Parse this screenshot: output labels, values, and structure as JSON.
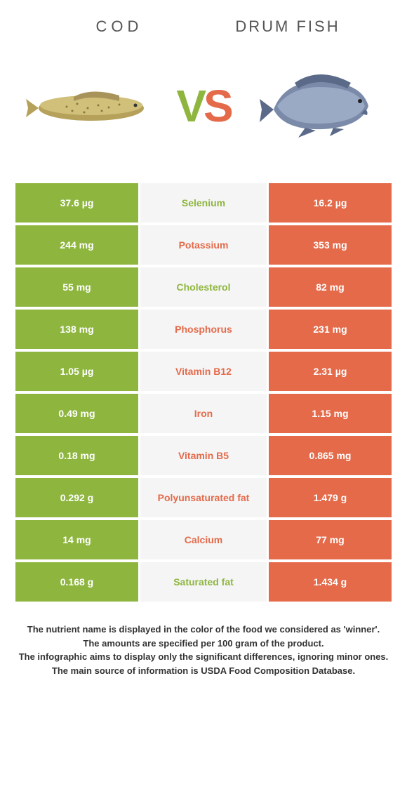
{
  "colors": {
    "left": "#8eb63f",
    "right": "#e46a4a",
    "mid_bg": "#f5f5f5",
    "text": "#333333"
  },
  "header": {
    "left_title": "COD",
    "right_title": "DRUM FISH"
  },
  "vs": {
    "v": "V",
    "s": "S"
  },
  "rows": [
    {
      "left": "37.6 µg",
      "label": "Selenium",
      "right": "16.2 µg",
      "winner": "left"
    },
    {
      "left": "244 mg",
      "label": "Potassium",
      "right": "353 mg",
      "winner": "right"
    },
    {
      "left": "55 mg",
      "label": "Cholesterol",
      "right": "82 mg",
      "winner": "left"
    },
    {
      "left": "138 mg",
      "label": "Phosphorus",
      "right": "231 mg",
      "winner": "right"
    },
    {
      "left": "1.05 µg",
      "label": "Vitamin B12",
      "right": "2.31 µg",
      "winner": "right"
    },
    {
      "left": "0.49 mg",
      "label": "Iron",
      "right": "1.15 mg",
      "winner": "right"
    },
    {
      "left": "0.18 mg",
      "label": "Vitamin B5",
      "right": "0.865 mg",
      "winner": "right"
    },
    {
      "left": "0.292 g",
      "label": "Polyunsaturated fat",
      "right": "1.479 g",
      "winner": "right"
    },
    {
      "left": "14 mg",
      "label": "Calcium",
      "right": "77 mg",
      "winner": "right"
    },
    {
      "left": "0.168 g",
      "label": "Saturated fat",
      "right": "1.434 g",
      "winner": "left"
    }
  ],
  "footer": {
    "line1": "The nutrient name is displayed in the color of the food we considered as 'winner'.",
    "line2": "The amounts are specified per 100 gram of the product.",
    "line3": "The infographic aims to display only the significant differences, ignoring minor ones.",
    "line4": "The main source of information is USDA Food Composition Database."
  }
}
